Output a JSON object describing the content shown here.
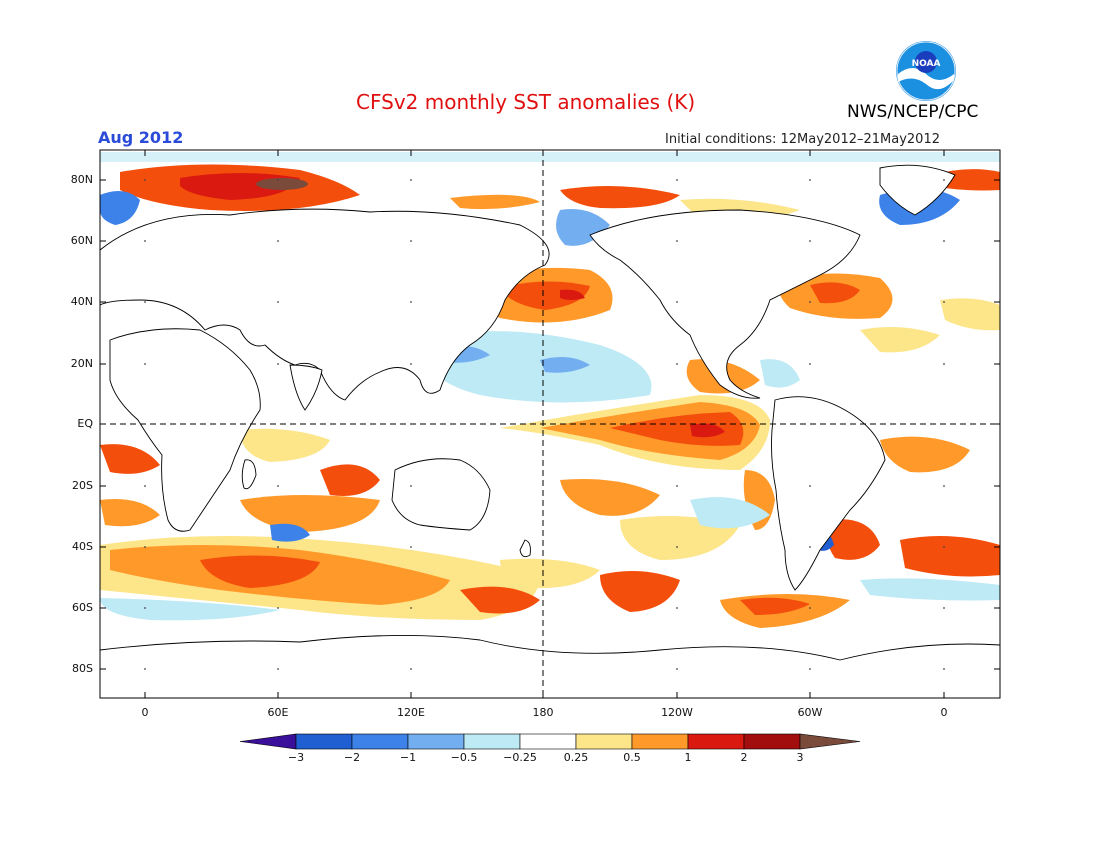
{
  "header": {
    "title": "CFSv2 monthly SST anomalies (K)",
    "valid_month": "Aug 2012",
    "initial_conditions": "Initial conditions: 12May2012–21May2012",
    "agency": "NWS/NCEP/CPC",
    "logo_text": "NOAA"
  },
  "axes": {
    "lat_labels": [
      "80N",
      "60N",
      "40N",
      "20N",
      "EQ",
      "20S",
      "40S",
      "60S",
      "80S"
    ],
    "lon_labels": [
      "0",
      "60E",
      "120E",
      "180",
      "120W",
      "60W",
      "0"
    ]
  },
  "colorbar": {
    "labels": [
      "−3",
      "−2",
      "−1",
      "−0.5",
      "−0.25",
      "0.25",
      "0.5",
      "1",
      "2",
      "3"
    ],
    "colors": [
      "#3a0f9a",
      "#1f5fd1",
      "#3d82e8",
      "#73aef0",
      "#bdeaf5",
      "#ffffff",
      "#fde58a",
      "#ff9a2a",
      "#f44e0c",
      "#da1a10",
      "#a20e0e",
      "#7a4a3a"
    ]
  }
}
